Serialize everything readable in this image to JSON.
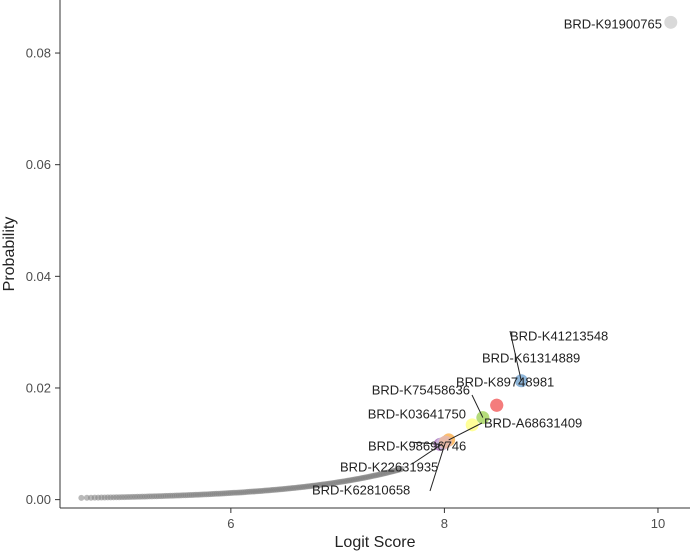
{
  "chart_data": {
    "type": "scatter",
    "xlabel": "Logit Score",
    "ylabel": "Probability",
    "xlim": [
      4.4,
      10.3
    ],
    "ylim": [
      -0.0015,
      0.0895
    ],
    "x_ticks": [
      6,
      8,
      10
    ],
    "y_ticks": [
      0.0,
      0.02,
      0.04,
      0.06,
      0.08
    ],
    "x_tick_labels": [
      "6",
      "8",
      "10"
    ],
    "y_tick_labels": [
      "0.00",
      "0.02",
      "0.04",
      "0.06",
      "0.08"
    ],
    "grid": false,
    "legend": "none",
    "background_curve": {
      "color": "#808080",
      "x_start": 4.6,
      "x_end": 7.6,
      "n_points": 160
    },
    "highlighted": [
      {
        "label": "BRD-K91900765",
        "x": 10.12,
        "y": 0.0855,
        "color": "#d9d9d9"
      },
      {
        "label": "BRD-K41213548",
        "x": 8.72,
        "y": 0.0213,
        "color": "#8fb6d9"
      },
      {
        "label": "BRD-K61314889",
        "x": 8.49,
        "y": 0.0169,
        "color": "#f47c7c"
      },
      {
        "label": "BRD-K89748981",
        "x": 8.49,
        "y": 0.0169,
        "color": "#f47c7c"
      },
      {
        "label": "BRD-K75458636",
        "x": 8.36,
        "y": 0.0147,
        "color": "#b5dc7a"
      },
      {
        "label": "BRD-K03641750",
        "x": 8.26,
        "y": 0.0134,
        "color": "#ffff99"
      },
      {
        "label": "BRD-A68631409",
        "x": 8.04,
        "y": 0.0107,
        "color": "#fdbf6f"
      },
      {
        "label": "BRD-K98696746",
        "x": 7.96,
        "y": 0.0099,
        "color": "#b584c6"
      },
      {
        "label": "BRD-K22631935",
        "x": 7.98,
        "y": 0.01,
        "color": "#ccb4da"
      },
      {
        "label": "BRD-K62810658",
        "x": 8.01,
        "y": 0.0103,
        "color": "#e7b9a8"
      }
    ]
  }
}
